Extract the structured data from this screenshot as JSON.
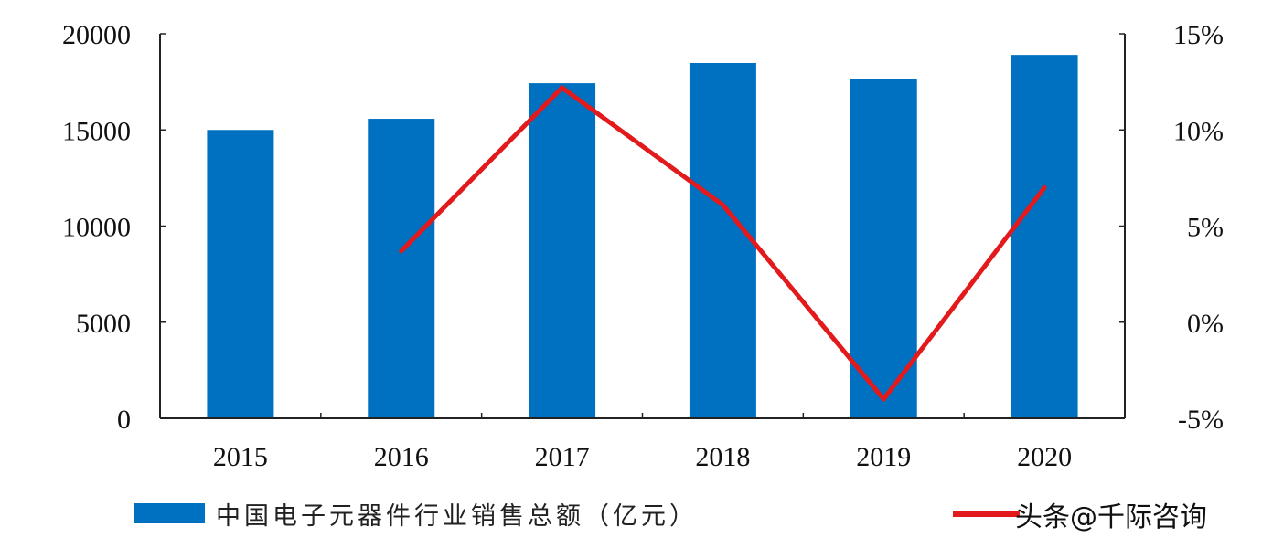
{
  "chart_data": {
    "type": "bar+line",
    "categories": [
      "2015",
      "2016",
      "2017",
      "2018",
      "2019",
      "2020"
    ],
    "series": [
      {
        "name": "中国电子元器件行业销售总额（亿元）",
        "type": "bar",
        "axis": "left",
        "color": "#0070C0",
        "values": [
          15000,
          15580,
          17430,
          18480,
          17670,
          18900
        ]
      },
      {
        "type": "line",
        "axis": "right",
        "color": "#E31A1C",
        "values": [
          null,
          3.7,
          12.2,
          6.1,
          -4.0,
          7.0
        ]
      }
    ],
    "y_left": {
      "range": [
        0,
        20000
      ],
      "ticks": [
        "0",
        "5000",
        "10000",
        "15000",
        "20000"
      ]
    },
    "y_right": {
      "range": [
        -5,
        15
      ],
      "unit": "%",
      "ticks": [
        "-5%",
        "0%",
        "5%",
        "10%",
        "15%"
      ]
    },
    "grid": false,
    "legend_placement": "bottom"
  },
  "watermark": "头条@千际咨询"
}
